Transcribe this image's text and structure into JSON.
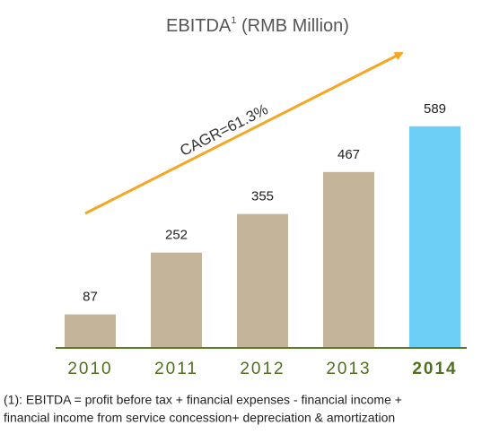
{
  "chart_data": {
    "type": "bar",
    "title": "EBITDA",
    "title_superscript": "1",
    "title_suffix": " (RMB Million)",
    "categories": [
      "2010",
      "2011",
      "2012",
      "2013",
      "2014"
    ],
    "values": [
      87,
      252,
      355,
      467,
      589
    ],
    "colors": [
      "#c4b59a",
      "#c4b59a",
      "#c4b59a",
      "#c4b59a",
      "#6dcff6"
    ],
    "annotation": "CAGR=61.3%",
    "footnote": [
      "(1): EBITDA = profit before tax + financial expenses - financial income +",
      "financial income from service concession+ depreciation & amortization"
    ]
  }
}
